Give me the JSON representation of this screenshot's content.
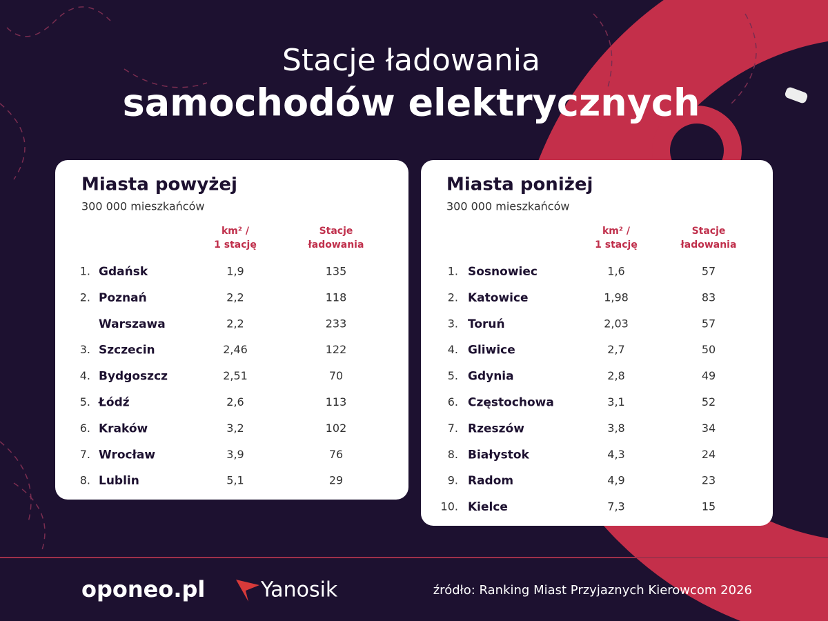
{
  "header": {
    "title_line1": "Stacje ładowania",
    "title_line2": "samochodów elektrycznych"
  },
  "tables": [
    {
      "title": "Miasta powyżej",
      "subtitle": "300 000 mieszkańców",
      "columns": [
        [
          "km² /",
          "1 stację"
        ],
        [
          "Stacje",
          "ładowania"
        ]
      ],
      "rows": [
        [
          "1.",
          "Gdańsk",
          "1,9",
          "135"
        ],
        [
          "2.",
          "Poznań",
          "2,2",
          "118"
        ],
        [
          null,
          "Warszawa",
          "2,2",
          "233"
        ],
        [
          "3.",
          "Szczecin",
          "2,46",
          "122"
        ],
        [
          "4.",
          "Bydgoszcz",
          "2,51",
          "70"
        ],
        [
          "5.",
          "Łódź",
          "2,6",
          "113"
        ],
        [
          "6.",
          "Kraków",
          "3,2",
          "102"
        ],
        [
          "7.",
          "Wrocław",
          "3,9",
          "76"
        ],
        [
          "8.",
          "Lublin",
          "5,1",
          "29"
        ]
      ]
    },
    {
      "title": "Miasta poniżej",
      "subtitle": "300 000 mieszkańców",
      "columns": [
        [
          "km² /",
          "1 stację"
        ],
        [
          "Stacje",
          "ładowania"
        ]
      ],
      "rows": [
        [
          "1.",
          "Sosnowiec",
          "1,6",
          "57"
        ],
        [
          "2.",
          "Katowice",
          "1,98",
          "83"
        ],
        [
          "3.",
          "Toruń",
          "2,03",
          "57"
        ],
        [
          "4.",
          "Gliwice",
          "2,7",
          "50"
        ],
        [
          "5.",
          "Gdynia",
          "2,8",
          "49"
        ],
        [
          "6.",
          "Częstochowa",
          "3,1",
          "52"
        ],
        [
          "7.",
          "Rzeszów",
          "3,8",
          "34"
        ],
        [
          "8.",
          "Białystok",
          "4,3",
          "24"
        ],
        [
          "9.",
          "Radom",
          "4,9",
          "23"
        ],
        [
          "10.",
          "Kielce",
          "7,3",
          "15"
        ]
      ]
    }
  ],
  "footer": {
    "logo1": "oponeo.pl",
    "logo2": "Yanosik",
    "source": "źródło: Ranking Miast Przyjaznych Kierowcom 2026"
  }
}
